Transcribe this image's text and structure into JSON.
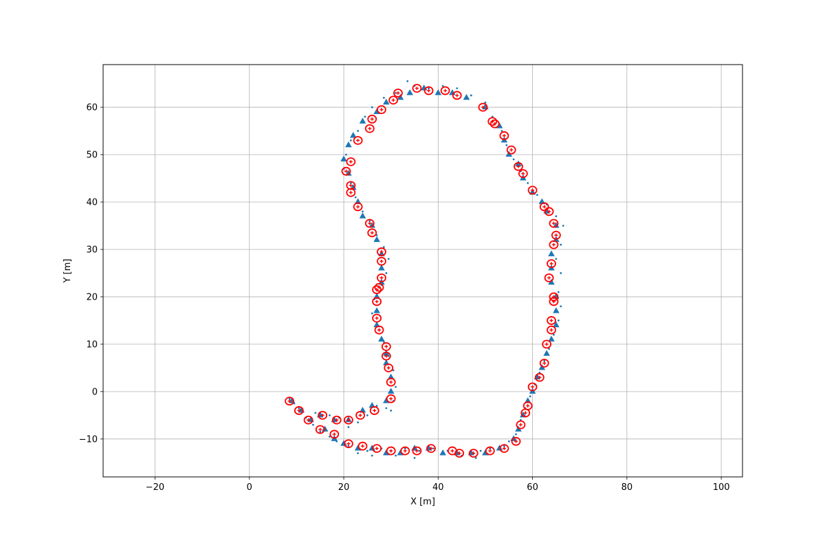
{
  "chart_data": {
    "type": "scatter",
    "xlabel": "X [m]",
    "ylabel": "Y [m]",
    "xlim": [
      -31,
      104.5
    ],
    "ylim": [
      -18,
      69
    ],
    "grid": true,
    "xticks": [
      -20,
      0,
      20,
      40,
      60,
      80,
      100
    ],
    "yticks": [
      -10,
      0,
      10,
      20,
      30,
      40,
      50,
      60
    ],
    "colors": {
      "landmarks": "#1f77b4",
      "measurements": "#1f77b4",
      "estimates": "#ff0000"
    },
    "series": [
      {
        "marker": "triangle",
        "points": [
          [
            9,
            -2
          ],
          [
            11,
            -4
          ],
          [
            13,
            -6
          ],
          [
            16,
            -8
          ],
          [
            18,
            -10
          ],
          [
            20,
            -11
          ],
          [
            23,
            -12
          ],
          [
            26,
            -12
          ],
          [
            29,
            -13
          ],
          [
            32,
            -13
          ],
          [
            35,
            -12
          ],
          [
            38,
            -12
          ],
          [
            41,
            -13
          ],
          [
            44,
            -13
          ],
          [
            47,
            -13
          ],
          [
            50,
            -13
          ],
          [
            53,
            -12
          ],
          [
            56,
            -10
          ],
          [
            57,
            -8
          ],
          [
            58,
            -5
          ],
          [
            59,
            -2
          ],
          [
            60,
            0
          ],
          [
            61,
            3
          ],
          [
            62,
            5
          ],
          [
            63,
            8
          ],
          [
            64,
            11
          ],
          [
            65,
            14
          ],
          [
            65,
            17
          ],
          [
            65,
            20
          ],
          [
            64,
            23
          ],
          [
            64,
            26
          ],
          [
            64,
            29
          ],
          [
            65,
            32
          ],
          [
            65,
            35
          ],
          [
            63,
            38
          ],
          [
            62,
            40
          ],
          [
            60,
            42
          ],
          [
            58,
            45
          ],
          [
            57,
            48
          ],
          [
            55,
            50
          ],
          [
            54,
            53
          ],
          [
            53,
            56
          ],
          [
            50,
            60
          ],
          [
            46,
            62
          ],
          [
            43,
            63
          ],
          [
            40,
            63
          ],
          [
            37,
            64
          ],
          [
            34,
            63
          ],
          [
            32,
            62
          ],
          [
            29,
            61
          ],
          [
            27,
            59
          ],
          [
            24,
            57
          ],
          [
            22,
            54
          ],
          [
            21,
            52
          ],
          [
            20,
            49
          ],
          [
            21,
            46
          ],
          [
            22,
            43
          ],
          [
            23,
            40
          ],
          [
            24,
            37
          ],
          [
            26,
            35
          ],
          [
            27,
            32
          ],
          [
            28,
            29
          ],
          [
            28,
            26
          ],
          [
            28,
            23
          ],
          [
            27,
            20
          ],
          [
            27,
            17
          ],
          [
            27,
            14
          ],
          [
            28,
            11
          ],
          [
            29,
            8
          ],
          [
            29,
            6
          ],
          [
            30,
            3
          ],
          [
            30,
            0
          ],
          [
            29,
            -2
          ],
          [
            26,
            -3
          ],
          [
            24,
            -4
          ],
          [
            21,
            -6
          ],
          [
            18,
            -6
          ],
          [
            15,
            -5
          ]
        ]
      },
      {
        "marker": "dot",
        "points": [
          [
            8.5,
            -1.5
          ],
          [
            9.5,
            -2.5
          ],
          [
            10.5,
            -3.5
          ],
          [
            12,
            -5.5
          ],
          [
            13.5,
            -7
          ],
          [
            15,
            -8.5
          ],
          [
            17,
            -9.5
          ],
          [
            18.5,
            -10.5
          ],
          [
            21,
            -11.5
          ],
          [
            23,
            -13
          ],
          [
            25,
            -12.5
          ],
          [
            26,
            -13.5
          ],
          [
            28,
            -12
          ],
          [
            30,
            -12.5
          ],
          [
            31,
            -13.5
          ],
          [
            33,
            -12
          ],
          [
            35,
            -14
          ],
          [
            36,
            -12.5
          ],
          [
            39,
            -12
          ],
          [
            42,
            -12.5
          ],
          [
            45,
            -13.5
          ],
          [
            48,
            -14
          ],
          [
            49,
            -12.5
          ],
          [
            51,
            -12
          ],
          [
            54,
            -11.5
          ],
          [
            55,
            -10.5
          ],
          [
            56.5,
            -9
          ],
          [
            57.5,
            -6
          ],
          [
            58.5,
            -3.5
          ],
          [
            59.5,
            -1
          ],
          [
            60.5,
            1.5
          ],
          [
            61.5,
            4
          ],
          [
            62.5,
            6.5
          ],
          [
            63.5,
            9
          ],
          [
            64.5,
            12
          ],
          [
            65.5,
            15
          ],
          [
            66,
            18
          ],
          [
            65.5,
            21
          ],
          [
            66,
            25
          ],
          [
            65,
            28
          ],
          [
            66,
            31
          ],
          [
            66.5,
            35
          ],
          [
            65,
            37
          ],
          [
            63,
            39.5
          ],
          [
            61,
            41.5
          ],
          [
            59,
            44
          ],
          [
            57.5,
            46.5
          ],
          [
            56,
            49
          ],
          [
            54.5,
            52
          ],
          [
            53.5,
            55
          ],
          [
            51.5,
            58
          ],
          [
            50,
            61
          ],
          [
            47,
            62.5
          ],
          [
            44,
            64
          ],
          [
            41,
            64.5
          ],
          [
            38,
            64
          ],
          [
            35,
            64.5
          ],
          [
            33.5,
            65.5
          ],
          [
            31,
            63
          ],
          [
            28.5,
            62
          ],
          [
            26,
            60
          ],
          [
            24.5,
            58
          ],
          [
            23,
            55
          ],
          [
            21.5,
            53
          ],
          [
            20.5,
            50
          ],
          [
            20,
            47
          ],
          [
            21.5,
            44
          ],
          [
            22.5,
            41
          ],
          [
            24,
            38
          ],
          [
            25.5,
            36
          ],
          [
            27,
            33
          ],
          [
            28.5,
            30.5
          ],
          [
            29.5,
            28
          ],
          [
            29,
            25
          ],
          [
            28,
            22.5
          ],
          [
            26.5,
            19.5
          ],
          [
            26,
            16.5
          ],
          [
            27.5,
            13
          ],
          [
            28.5,
            10.5
          ],
          [
            29.5,
            7.5
          ],
          [
            30.5,
            4.5
          ],
          [
            31,
            1
          ],
          [
            30.5,
            -2
          ],
          [
            30,
            -4
          ],
          [
            29,
            -3.5
          ],
          [
            27,
            -3
          ],
          [
            25,
            -5
          ],
          [
            23,
            -6.5
          ],
          [
            21,
            -7.5
          ],
          [
            19,
            -5.5
          ],
          [
            17,
            -5
          ],
          [
            14,
            -4.5
          ]
        ]
      },
      {
        "marker": "circle",
        "points": [
          [
            8.5,
            -2
          ],
          [
            10.5,
            -4
          ],
          [
            12.5,
            -6
          ],
          [
            15,
            -8
          ],
          [
            18,
            -9
          ],
          [
            21,
            -11
          ],
          [
            24,
            -11.5
          ],
          [
            27,
            -12
          ],
          [
            30,
            -12.5
          ],
          [
            33,
            -12.5
          ],
          [
            35.5,
            -12.5
          ],
          [
            38.5,
            -12
          ],
          [
            43,
            -12.5
          ],
          [
            44.5,
            -13
          ],
          [
            47.5,
            -13
          ],
          [
            51,
            -12.5
          ],
          [
            54,
            -12
          ],
          [
            56.5,
            -10.5
          ],
          [
            57.5,
            -7
          ],
          [
            58.5,
            -4.5
          ],
          [
            59,
            -3
          ],
          [
            60,
            1
          ],
          [
            61.5,
            3
          ],
          [
            62.5,
            6
          ],
          [
            63,
            10
          ],
          [
            64,
            13
          ],
          [
            64,
            15
          ],
          [
            64.5,
            19
          ],
          [
            64.5,
            20
          ],
          [
            63.5,
            24
          ],
          [
            64,
            27
          ],
          [
            64.5,
            31
          ],
          [
            65,
            33
          ],
          [
            64.5,
            35.5
          ],
          [
            63.5,
            38
          ],
          [
            62.5,
            39
          ],
          [
            60,
            42.5
          ],
          [
            58,
            46
          ],
          [
            57,
            47.5
          ],
          [
            55.5,
            51
          ],
          [
            54,
            54
          ],
          [
            52,
            56.5
          ],
          [
            51.5,
            57
          ],
          [
            49.5,
            60
          ],
          [
            44,
            62.5
          ],
          [
            41.5,
            63.5
          ],
          [
            38,
            63.5
          ],
          [
            35.5,
            64
          ],
          [
            31.5,
            63
          ],
          [
            30.5,
            61.5
          ],
          [
            28,
            59.5
          ],
          [
            26,
            57.5
          ],
          [
            25.5,
            55.5
          ],
          [
            23,
            53
          ],
          [
            21.5,
            48.5
          ],
          [
            20.5,
            46.5
          ],
          [
            21.5,
            43.5
          ],
          [
            21.5,
            42
          ],
          [
            23,
            39
          ],
          [
            25.5,
            35.5
          ],
          [
            26,
            33.5
          ],
          [
            28,
            29.5
          ],
          [
            28,
            27.5
          ],
          [
            28,
            24
          ],
          [
            27.5,
            22
          ],
          [
            27,
            21.5
          ],
          [
            27,
            19
          ],
          [
            27,
            15.5
          ],
          [
            27.5,
            13
          ],
          [
            29,
            9.5
          ],
          [
            29,
            7.5
          ],
          [
            29.5,
            5
          ],
          [
            30,
            2
          ],
          [
            30,
            -1.5
          ],
          [
            26.5,
            -4
          ],
          [
            23.5,
            -5
          ],
          [
            21,
            -6
          ],
          [
            18.5,
            -6
          ],
          [
            15.5,
            -5
          ]
        ]
      }
    ]
  }
}
